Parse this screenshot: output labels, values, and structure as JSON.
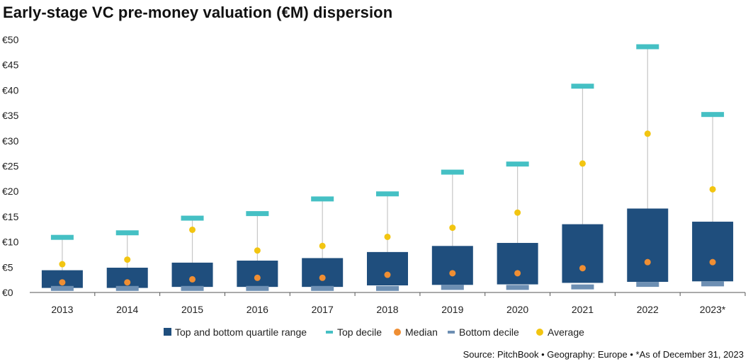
{
  "title": "Early-stage VC pre-money valuation (€M) dispersion",
  "source": "Source: PitchBook  •  Geography: Europe  •  *As of December 31, 2023",
  "colors": {
    "box": "#1f4e7d",
    "top_decile": "#45c0c4",
    "bottom_decile": "#6d8fb3",
    "median": "#ef8e33",
    "average": "#f2c511",
    "whisker": "#c6c6c6",
    "axis": "#555555"
  },
  "chart_data": {
    "type": "box",
    "title": "Early-stage VC pre-money valuation (€M) dispersion",
    "categories": [
      "2013",
      "2014",
      "2015",
      "2016",
      "2017",
      "2018",
      "2019",
      "2020",
      "2021",
      "2022",
      "2023*"
    ],
    "ylim": [
      0,
      50
    ],
    "y_ticks": [
      0,
      5,
      10,
      15,
      20,
      25,
      30,
      35,
      40,
      45,
      50
    ],
    "y_tick_labels": [
      "€0",
      "€5",
      "€10",
      "€15",
      "€20",
      "€25",
      "€30",
      "€35",
      "€40",
      "€45",
      "€50"
    ],
    "grid": false,
    "legend_position": "bottom",
    "series": [
      {
        "name": "Top and bottom quartile range",
        "kind": "range",
        "lower": [
          0.9,
          0.9,
          1.1,
          1.1,
          1.1,
          1.4,
          1.5,
          1.6,
          1.9,
          2.1,
          2.2
        ],
        "upper": [
          4.4,
          4.9,
          5.9,
          6.3,
          6.8,
          8.0,
          9.2,
          9.8,
          13.5,
          16.6,
          14.0
        ]
      },
      {
        "name": "Top decile",
        "kind": "marker",
        "values": [
          10.9,
          11.8,
          14.7,
          15.6,
          18.5,
          19.5,
          23.8,
          25.4,
          40.8,
          48.6,
          35.2
        ]
      },
      {
        "name": "Median",
        "kind": "point",
        "values": [
          2.0,
          2.0,
          2.6,
          2.9,
          2.9,
          3.5,
          3.8,
          3.8,
          4.8,
          6.0,
          6.0
        ]
      },
      {
        "name": "Bottom decile",
        "kind": "marker",
        "values": [
          0.8,
          0.8,
          0.8,
          0.8,
          0.8,
          0.8,
          1.0,
          1.0,
          1.1,
          1.6,
          1.7
        ]
      },
      {
        "name": "Average",
        "kind": "point",
        "values": [
          5.6,
          6.5,
          12.4,
          8.3,
          9.2,
          11.0,
          12.8,
          15.8,
          25.5,
          31.4,
          20.4
        ]
      }
    ]
  }
}
